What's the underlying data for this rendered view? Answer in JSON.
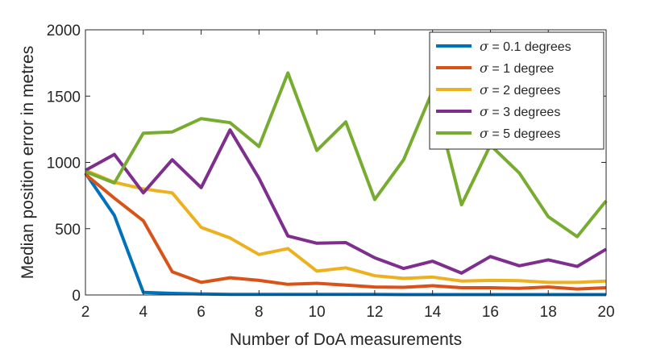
{
  "chart_data": {
    "type": "line",
    "title": "",
    "xlabel": "Number of DoA measurements",
    "ylabel": "Median position error in metres",
    "xlim": [
      2,
      20
    ],
    "ylim": [
      0,
      2000
    ],
    "x_ticks": [
      2,
      4,
      6,
      8,
      10,
      12,
      14,
      16,
      18,
      20
    ],
    "y_ticks": [
      0,
      500,
      1000,
      1500,
      2000
    ],
    "grid": false,
    "legend_position": "top-right",
    "x": [
      2,
      3,
      4,
      5,
      6,
      7,
      8,
      9,
      10,
      11,
      12,
      13,
      14,
      15,
      16,
      17,
      18,
      19,
      20
    ],
    "series": [
      {
        "name": "σ = 0.1 degrees",
        "symbol": "σ",
        "label_rest": " = 0.1 degrees",
        "color": "#0072BD",
        "values": [
          920,
          600,
          20,
          12,
          8,
          5,
          5,
          5,
          4,
          4,
          4,
          3,
          3,
          3,
          3,
          3,
          3,
          3,
          3
        ]
      },
      {
        "name": "σ = 1 degree",
        "symbol": "σ",
        "label_rest": " = 1 degree",
        "color": "#D95319",
        "values": [
          910,
          730,
          560,
          175,
          95,
          130,
          110,
          80,
          88,
          75,
          60,
          58,
          70,
          55,
          55,
          50,
          60,
          45,
          55
        ]
      },
      {
        "name": "σ = 2 degrees",
        "symbol": "σ",
        "label_rest": " = 2 degrees",
        "color": "#EDB120",
        "values": [
          940,
          850,
          800,
          770,
          510,
          430,
          305,
          350,
          180,
          205,
          145,
          125,
          135,
          105,
          110,
          108,
          95,
          95,
          105
        ]
      },
      {
        "name": "σ = 3 degrees",
        "symbol": "σ",
        "label_rest": " = 3 degrees",
        "color": "#7E2F8E",
        "values": [
          940,
          1060,
          770,
          1020,
          810,
          1245,
          880,
          445,
          390,
          395,
          280,
          200,
          255,
          165,
          290,
          220,
          265,
          215,
          345
        ]
      },
      {
        "name": "σ = 5 degrees",
        "symbol": "σ",
        "label_rest": " = 5 degrees",
        "color": "#77AC30",
        "values": [
          930,
          845,
          1220,
          1230,
          1330,
          1300,
          1120,
          1675,
          1090,
          1305,
          720,
          1020,
          1540,
          680,
          1130,
          920,
          590,
          440,
          710
        ]
      }
    ]
  }
}
